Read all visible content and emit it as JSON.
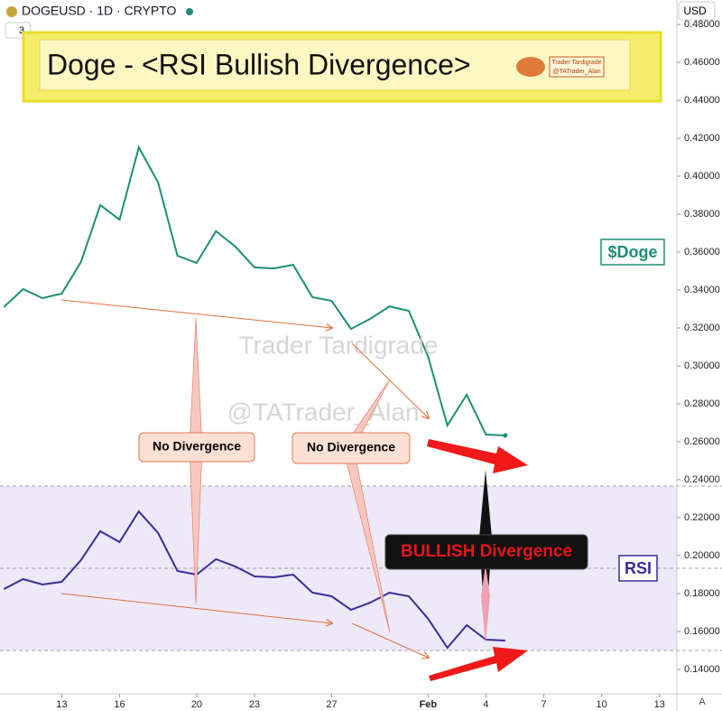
{
  "header": {
    "symbol": "DOGEUSD · 1D · CRYPTO",
    "indicator_count": "3",
    "currency": "USD"
  },
  "banner": {
    "title": "Doge - <RSI Bullish Divergence>",
    "logo_name": "Trader Tardigrade",
    "logo_handle": "@TATrader_Alan"
  },
  "watermark": {
    "name": "Trader Tardigrade",
    "handle": "@TATrader_Alan"
  },
  "corner_logo": "A",
  "chart_data": {
    "type": "line",
    "annotations": [
      "No Divergence",
      "No Divergence",
      "BULLISH Divergence"
    ],
    "x": [
      0,
      1,
      2,
      3,
      4,
      5,
      6,
      7,
      8,
      9,
      10,
      11,
      12,
      13,
      14,
      15,
      16,
      17,
      18,
      19,
      20,
      21,
      22,
      23,
      24,
      25,
      26
    ],
    "xlim": [
      -0.2,
      34.9
    ],
    "xticks": [
      {
        "value": 3,
        "label": "13"
      },
      {
        "value": 6,
        "label": "16"
      },
      {
        "value": 10,
        "label": "20"
      },
      {
        "value": 13,
        "label": "23"
      },
      {
        "value": 17,
        "label": "27"
      },
      {
        "value": 22,
        "label": "Feb"
      },
      {
        "value": 25,
        "label": "4"
      },
      {
        "value": 28,
        "label": "7"
      },
      {
        "value": 31,
        "label": "10"
      },
      {
        "value": 34,
        "label": "13"
      }
    ],
    "ylim": [
      0.1271,
      0.4929
    ],
    "yticks": [
      {
        "value": 0.14,
        "label": "0.14000"
      },
      {
        "value": 0.16,
        "label": "0.16000"
      },
      {
        "value": 0.18,
        "label": "0.18000"
      },
      {
        "value": 0.2,
        "label": "0.20000"
      },
      {
        "value": 0.22,
        "label": "0.22000"
      },
      {
        "value": 0.24,
        "label": "0.24000"
      },
      {
        "value": 0.26,
        "label": "0.26000"
      },
      {
        "value": 0.28,
        "label": "0.28000"
      },
      {
        "value": 0.3,
        "label": "0.30000"
      },
      {
        "value": 0.32,
        "label": "0.32000"
      },
      {
        "value": 0.34,
        "label": "0.34000"
      },
      {
        "value": 0.36,
        "label": "0.36000"
      },
      {
        "value": 0.38,
        "label": "0.38000"
      },
      {
        "value": 0.4,
        "label": "0.40000"
      },
      {
        "value": 0.42,
        "label": "0.42000"
      },
      {
        "value": 0.44,
        "label": "0.44000"
      },
      {
        "value": 0.46,
        "label": "0.46000"
      },
      {
        "value": 0.48,
        "label": "0.48000"
      }
    ],
    "y2lim": [
      30,
      70
    ],
    "y2ticks": [
      30,
      50,
      70
    ],
    "series": [
      {
        "name": "$Doge",
        "color": "#1b8f72",
        "values": [
          0.331,
          0.3405,
          0.3357,
          0.3381,
          0.3548,
          0.3848,
          0.3771,
          0.4152,
          0.3967,
          0.3581,
          0.3543,
          0.371,
          0.3629,
          0.3519,
          0.3514,
          0.3533,
          0.3362,
          0.3343,
          0.3195,
          0.3248,
          0.3314,
          0.329,
          0.3048,
          0.2686,
          0.2848,
          0.2638,
          0.2633
        ]
      },
      {
        "name": "RSI",
        "color": "#3c2a9a",
        "axis": "y2",
        "values": [
          44.95,
          47.36,
          46.04,
          46.7,
          51.98,
          59.01,
          56.37,
          63.85,
          58.57,
          49.34,
          48.46,
          52.2,
          50.44,
          48.02,
          47.8,
          48.46,
          44.07,
          43.19,
          39.89,
          41.65,
          44.07,
          43.19,
          37.69,
          30.66,
          36.15,
          32.64,
          32.42
        ]
      }
    ]
  }
}
